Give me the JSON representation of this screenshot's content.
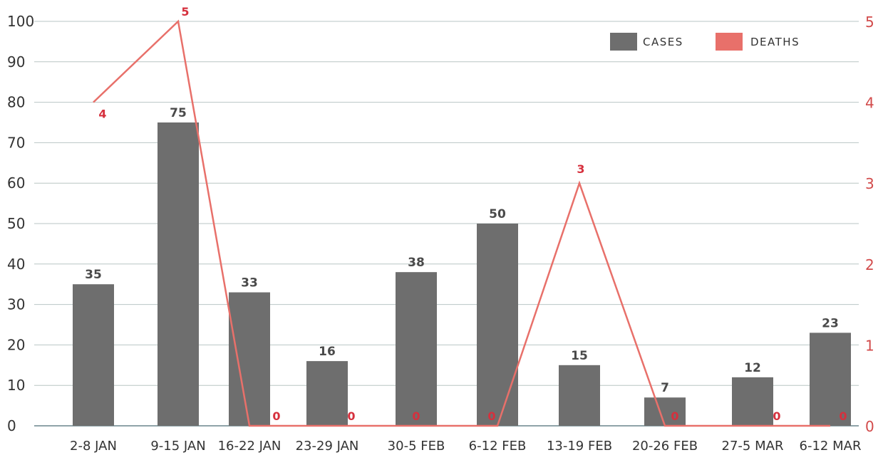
{
  "chart_data": {
    "type": "bar",
    "categories": [
      "2-8 JAN",
      "9-15 JAN",
      "16-22 JAN",
      "23-29 JAN",
      "30-5 FEB",
      "6-12 FEB",
      "13-19 FEB",
      "20-26 FEB",
      "27-5 MAR",
      "6-12 MAR"
    ],
    "series": [
      {
        "name": "CASES",
        "type": "bar",
        "axis": "left",
        "values": [
          35,
          75,
          33,
          16,
          38,
          50,
          15,
          7,
          12,
          23
        ],
        "color": "#6e6e6e"
      },
      {
        "name": "DEATHS",
        "type": "line",
        "axis": "right",
        "values": [
          4,
          5,
          0,
          0,
          0,
          0,
          3,
          0,
          0,
          0
        ],
        "color": "#e8706a"
      }
    ],
    "y_left": {
      "min": 0,
      "max": 100,
      "ticks": [
        0,
        10,
        20,
        30,
        40,
        50,
        60,
        70,
        80,
        90,
        100
      ]
    },
    "y_right": {
      "min": 0,
      "max": 5,
      "ticks": [
        0,
        1,
        2,
        3,
        4,
        5
      ],
      "color": "#d24b4b"
    },
    "grid": true,
    "legend": {
      "position": "top-right",
      "entries": [
        "CASES",
        "DEATHS"
      ]
    },
    "title": "",
    "xlabel": "",
    "ylabel": ""
  }
}
